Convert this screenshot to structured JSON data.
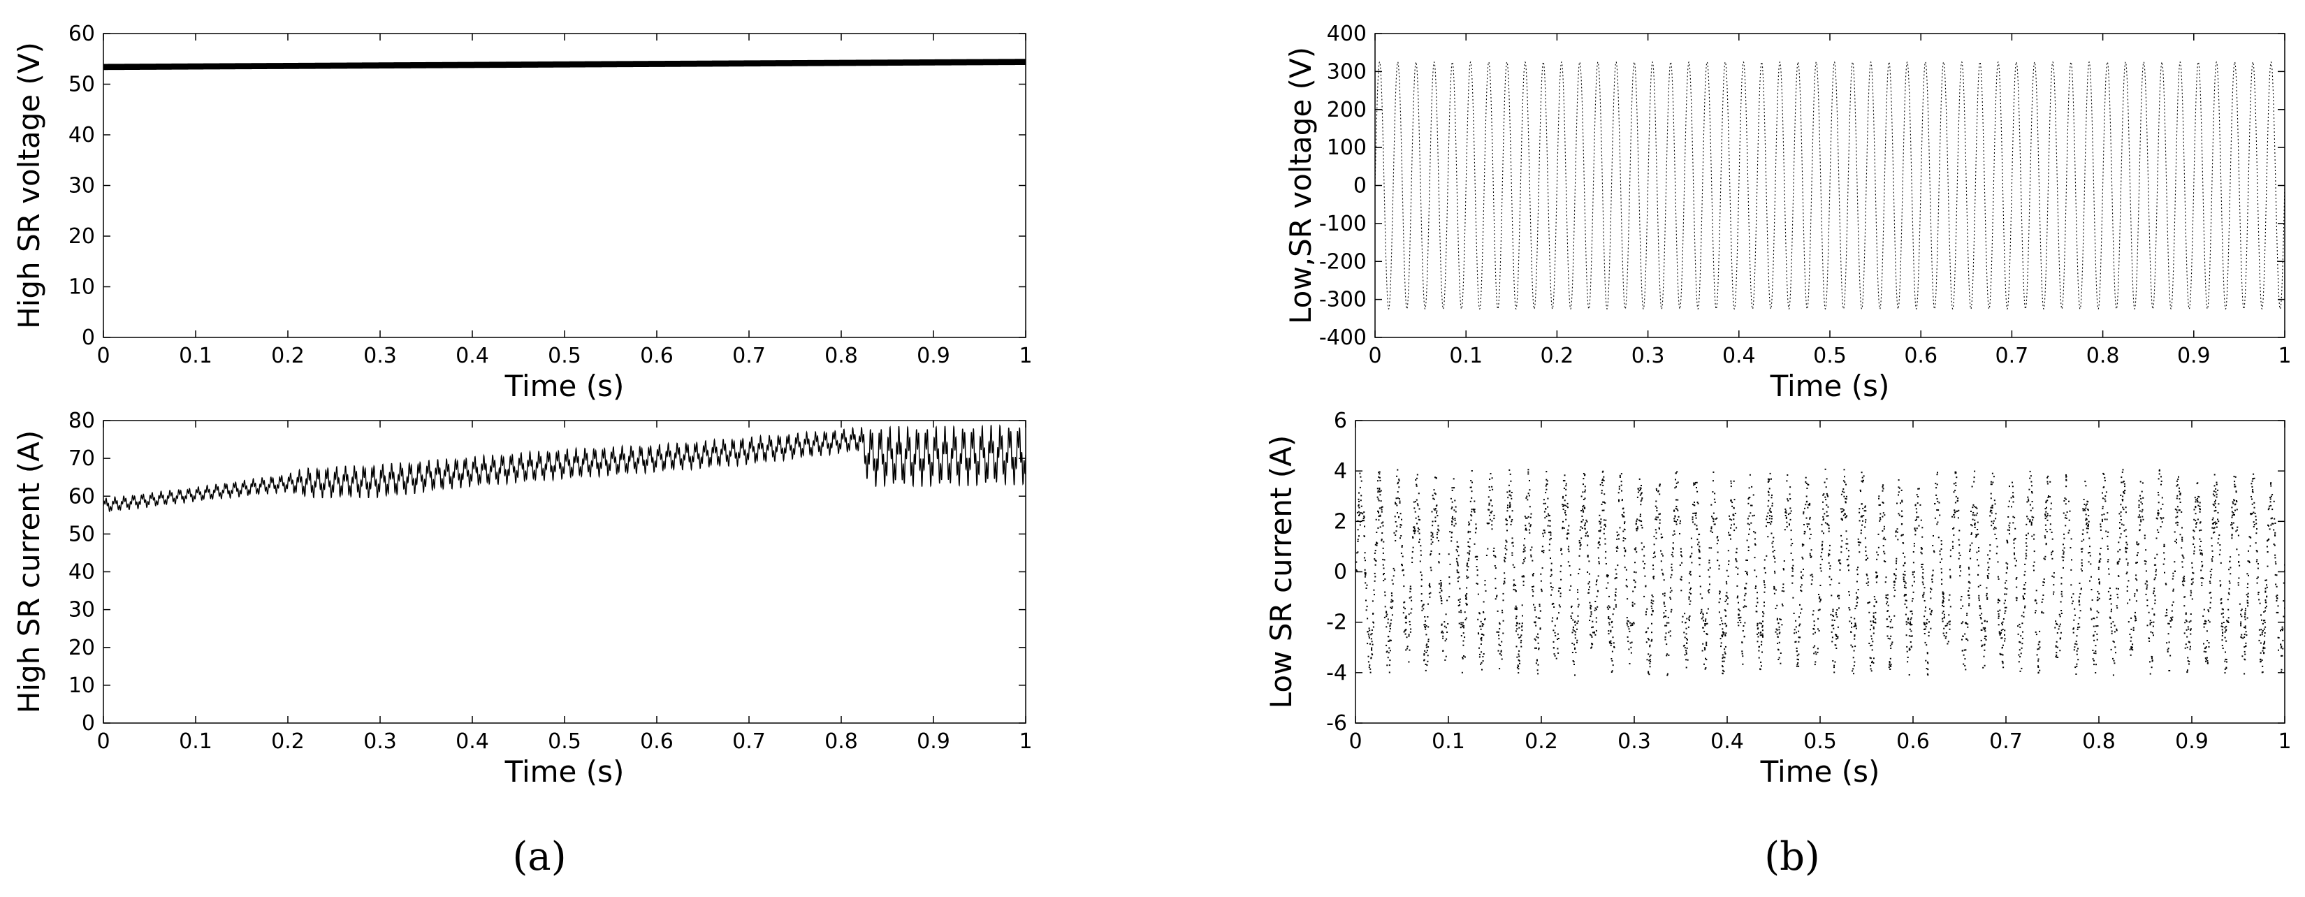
{
  "panel_labels": [
    "(a)",
    "(b)"
  ],
  "chart_data": [
    {
      "type": "line",
      "panel": "a",
      "position": "top",
      "xlabel": "Time (s)",
      "ylabel": "High SR voltage (V)",
      "xlim": [
        0,
        1
      ],
      "ylim": [
        0,
        60
      ],
      "xticks": [
        0,
        0.1,
        0.2,
        0.3,
        0.4,
        0.5,
        0.6,
        0.7,
        0.8,
        0.9,
        1
      ],
      "yticks": [
        0,
        10,
        20,
        30,
        40,
        50,
        60
      ],
      "grid": false,
      "series": [
        {
          "x": [
            0,
            0.1,
            0.2,
            0.3,
            0.4,
            0.5,
            0.6,
            0.7,
            0.8,
            0.9,
            1
          ],
          "y": [
            53.4,
            53.5,
            53.6,
            53.7,
            53.8,
            53.9,
            54.0,
            54.1,
            54.2,
            54.3,
            54.4
          ],
          "ripple": 0.6
        }
      ]
    },
    {
      "type": "line",
      "panel": "a",
      "position": "bottom",
      "xlabel": "Time (s)",
      "ylabel": "High SR current (A)",
      "xlim": [
        0,
        1
      ],
      "ylim": [
        0,
        80
      ],
      "xticks": [
        0,
        0.1,
        0.2,
        0.3,
        0.4,
        0.5,
        0.6,
        0.7,
        0.8,
        0.9,
        1
      ],
      "yticks": [
        0,
        10,
        20,
        30,
        40,
        50,
        60,
        70,
        80
      ],
      "grid": false,
      "series": [
        {
          "x": [
            0,
            0.1,
            0.2,
            0.22,
            0.3,
            0.4,
            0.5,
            0.6,
            0.7,
            0.8,
            0.82,
            0.83,
            0.9,
            1
          ],
          "y": [
            57.5,
            60.5,
            63.5,
            63.5,
            64.0,
            66.5,
            68.5,
            70.0,
            72.0,
            74.5,
            75.0,
            70.5,
            70.5,
            71.0
          ],
          "amplitude": [
            1.2,
            1.2,
            1.5,
            2.5,
            2.8,
            2.5,
            2.5,
            2.3,
            2.3,
            2.0,
            2.0,
            5.0,
            5.0,
            5.0
          ]
        }
      ]
    },
    {
      "type": "line",
      "panel": "b",
      "position": "top",
      "xlabel": "Time (s)",
      "ylabel": "Low,SR voltage (V)",
      "xlim": [
        0,
        1
      ],
      "ylim": [
        -400,
        400
      ],
      "xticks": [
        0,
        0.1,
        0.2,
        0.3,
        0.4,
        0.5,
        0.6,
        0.7,
        0.8,
        0.9,
        1
      ],
      "yticks": [
        -400,
        -300,
        -200,
        -100,
        0,
        100,
        200,
        300,
        400
      ],
      "grid": false,
      "series": [
        {
          "waveform": "sine",
          "frequency_hz": 50,
          "amplitude": 325,
          "offset": 0
        }
      ]
    },
    {
      "type": "scatter",
      "panel": "b",
      "position": "bottom",
      "xlabel": "Time (s)",
      "ylabel": "Low SR current (A)",
      "xlim": [
        0,
        1
      ],
      "ylim": [
        -6,
        6
      ],
      "xticks": [
        0,
        0.1,
        0.2,
        0.3,
        0.4,
        0.5,
        0.6,
        0.7,
        0.8,
        0.9,
        1
      ],
      "yticks": [
        -6,
        -4,
        -2,
        0,
        2,
        4,
        6
      ],
      "grid": false,
      "series": [
        {
          "waveform": "sine-samples",
          "frequency_hz": 50,
          "amplitude": 3.0,
          "envelope_x": [
            0,
            0.1,
            0.2,
            0.3,
            0.5,
            0.8,
            1
          ],
          "envelope_y": [
            4.8,
            5.0,
            4.8,
            4.3,
            4.3,
            4.0,
            4.0
          ]
        }
      ]
    }
  ]
}
